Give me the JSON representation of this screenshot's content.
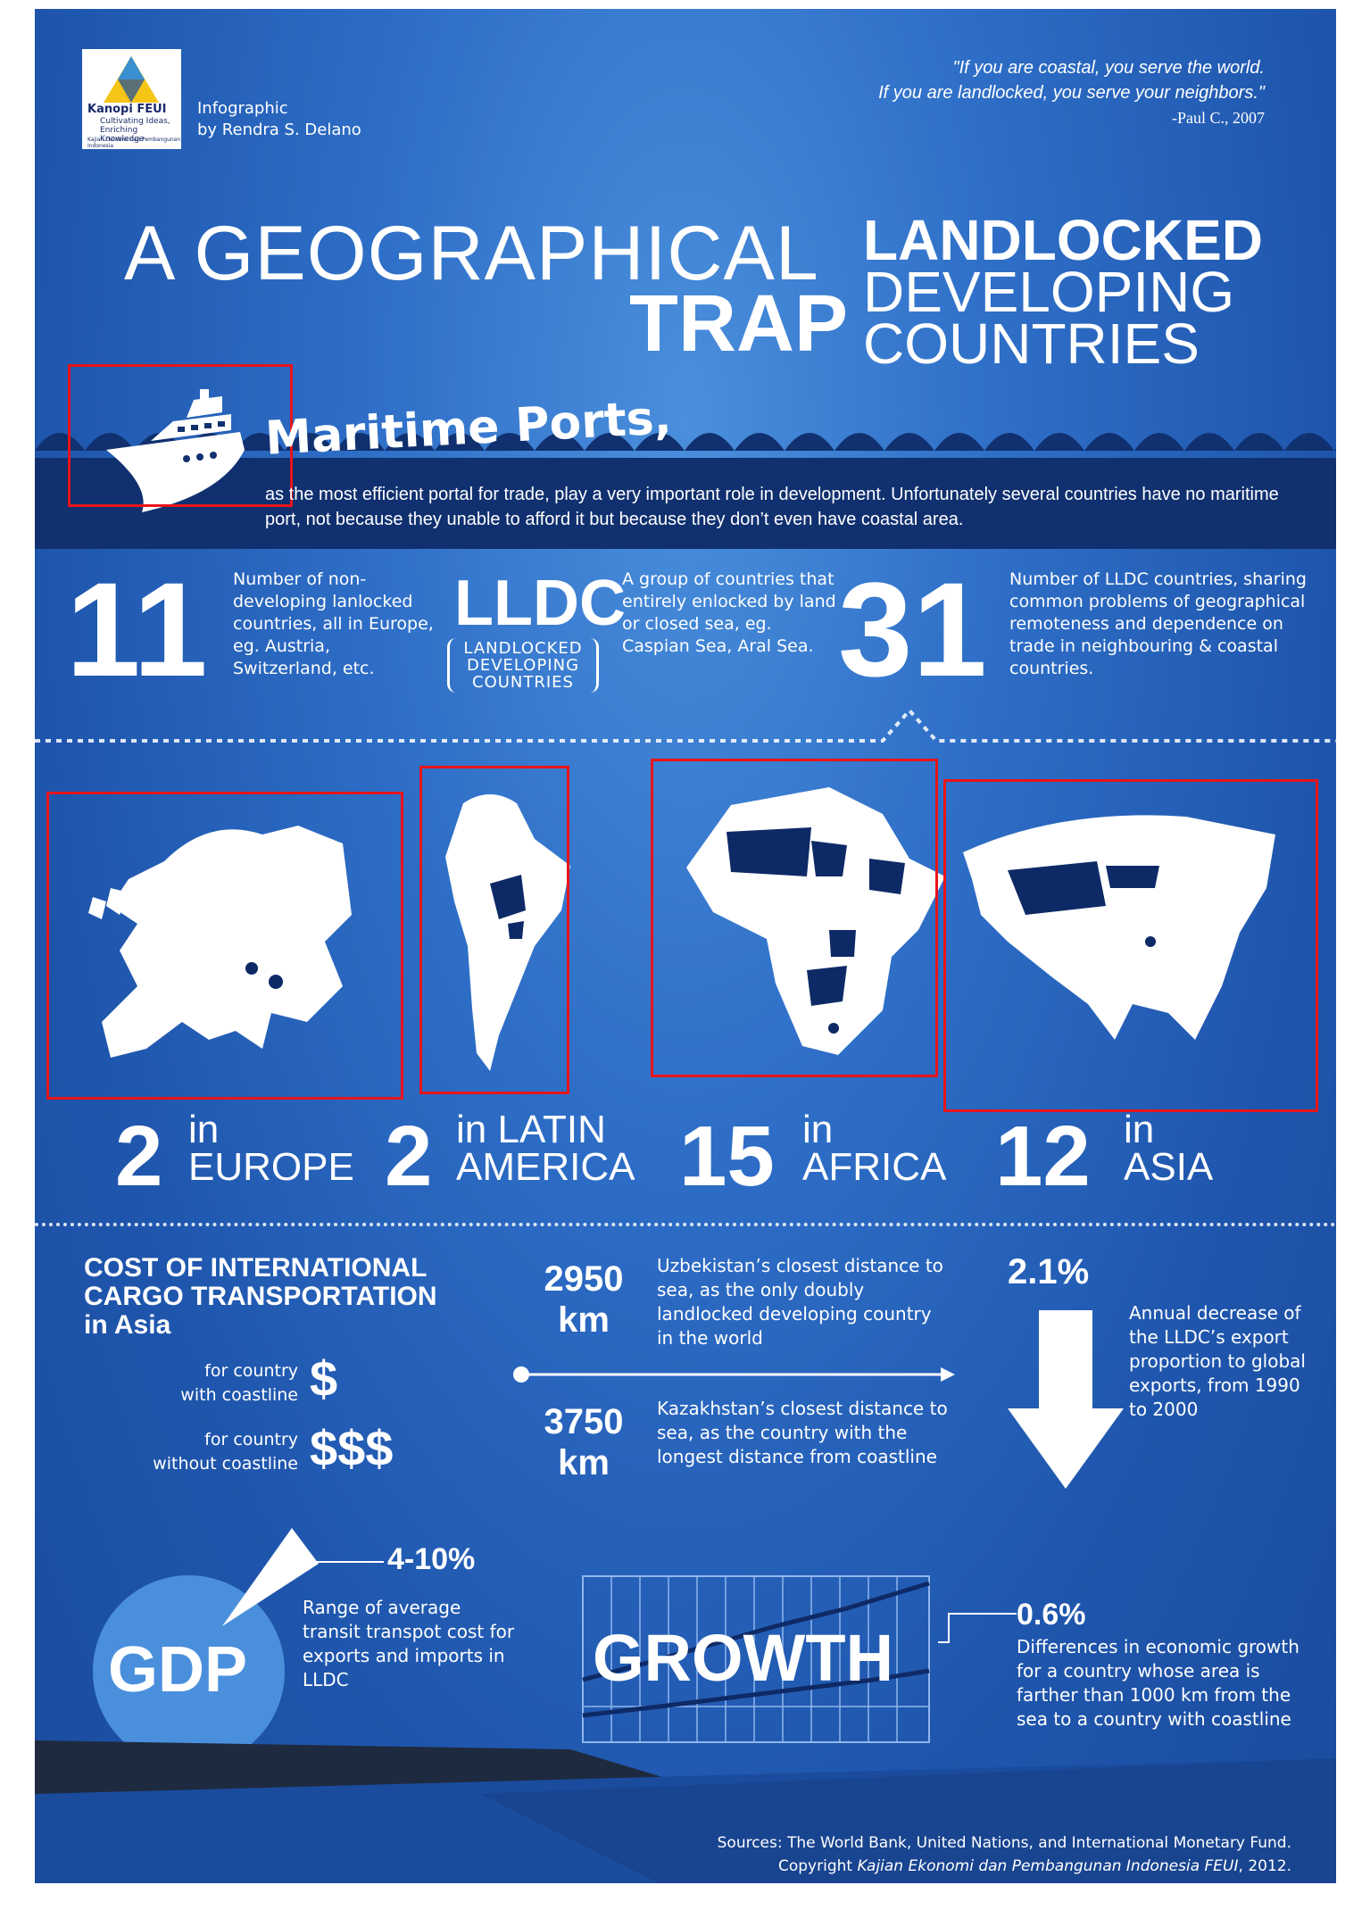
{
  "logo": {
    "name": "Kanopi FEUI",
    "tagline_1": "Cultivating Ideas,",
    "tagline_2": "Enriching Knowledge",
    "fineprint": "Kajian Ekonomi dan Pembangunan Indonesia"
  },
  "byline": {
    "line1": "Infographic",
    "line2": "by Rendra S. Delano"
  },
  "quote": {
    "line1": "\"If you are coastal, you serve the world.",
    "line2": "If you are landlocked, you serve your neighbors.\"",
    "author": "-Paul C., 2007"
  },
  "title": {
    "part1": "A GEOGRAPHICAL",
    "part2": "TRAP",
    "right1": "LANDLOCKED",
    "right2": "DEVELOPING",
    "right3": "COUNTRIES"
  },
  "maritime": {
    "heading": "Maritime Ports,",
    "text": "as the most efficient portal for trade, play a very important role in development. Unfortunately several countries have no maritime port, not because they unable to afford it but because they don’t even have coastal area."
  },
  "stats": {
    "eleven": {
      "number": "11",
      "text": "Number of non-developing lanlocked countries, all in Europe, eg. Austria, Switzerland, etc."
    },
    "lldc": {
      "acronym": "LLDC",
      "expansion_1": "LANDLOCKED",
      "expansion_2": "DEVELOPING",
      "expansion_3": "COUNTRIES",
      "text": "A group of countries that entirely enlocked by land or closed sea, eg. Caspian Sea, Aral Sea."
    },
    "thirtyone": {
      "number": "31",
      "text": "Number of LLDC countries, sharing common problems of geographical remoteness and dependence on trade in neighbouring & coastal countries."
    }
  },
  "regions": [
    {
      "count": "2",
      "in": "in",
      "name": "EUROPE"
    },
    {
      "count": "2",
      "in": "in LATIN",
      "name": "AMERICA"
    },
    {
      "count": "15",
      "in": "in",
      "name": "AFRICA"
    },
    {
      "count": "12",
      "in": "in",
      "name": "ASIA"
    }
  ],
  "cost": {
    "title_1": "COST OF INTERNATIONAL",
    "title_2": "CARGO TRANSPORTATION",
    "title_3": "in Asia",
    "coast_label_1": "for country",
    "coast_label_2": "with coastline",
    "coast_symbol": "$",
    "nocoast_label_1": "for country",
    "nocoast_label_2": "without coastline",
    "nocoast_symbol": "$$$"
  },
  "distances": [
    {
      "value": "2950",
      "unit": "km",
      "text": "Uzbekistan’s closest distance to sea, as the only doubly landlocked developing country in the world"
    },
    {
      "value": "3750",
      "unit": "km",
      "text": "Kazakhstan’s closest distance to sea, as the country with the longest distance from coastline"
    }
  ],
  "export_decrease": {
    "value": "2.1%",
    "text": "Annual decrease of the LLDC’s export proportion to global exports, from 1990 to 2000"
  },
  "gdp": {
    "label": "GDP",
    "value": "4-10%",
    "text": "Range of average transit transpot cost for exports and imports in LLDC"
  },
  "growth": {
    "label": "GROWTH",
    "value": "0.6%",
    "text": "Differences in economic growth for a country whose area is farther than 1000 km from the sea to a country with coastline"
  },
  "footer": {
    "sources": "Sources: The World Bank, United Nations, and International Monetary Fund.",
    "copyright_prefix": "Copyright ",
    "copyright_name": "Kajian Ekonomi dan Pembangunan Indonesia FEUI",
    "copyright_year": ", 2012."
  },
  "colors": {
    "background": "#2e6ec7",
    "dark_navy": "#10306f",
    "highlight_box": "#e8141a",
    "lldc_fill": "#0e2a66"
  }
}
